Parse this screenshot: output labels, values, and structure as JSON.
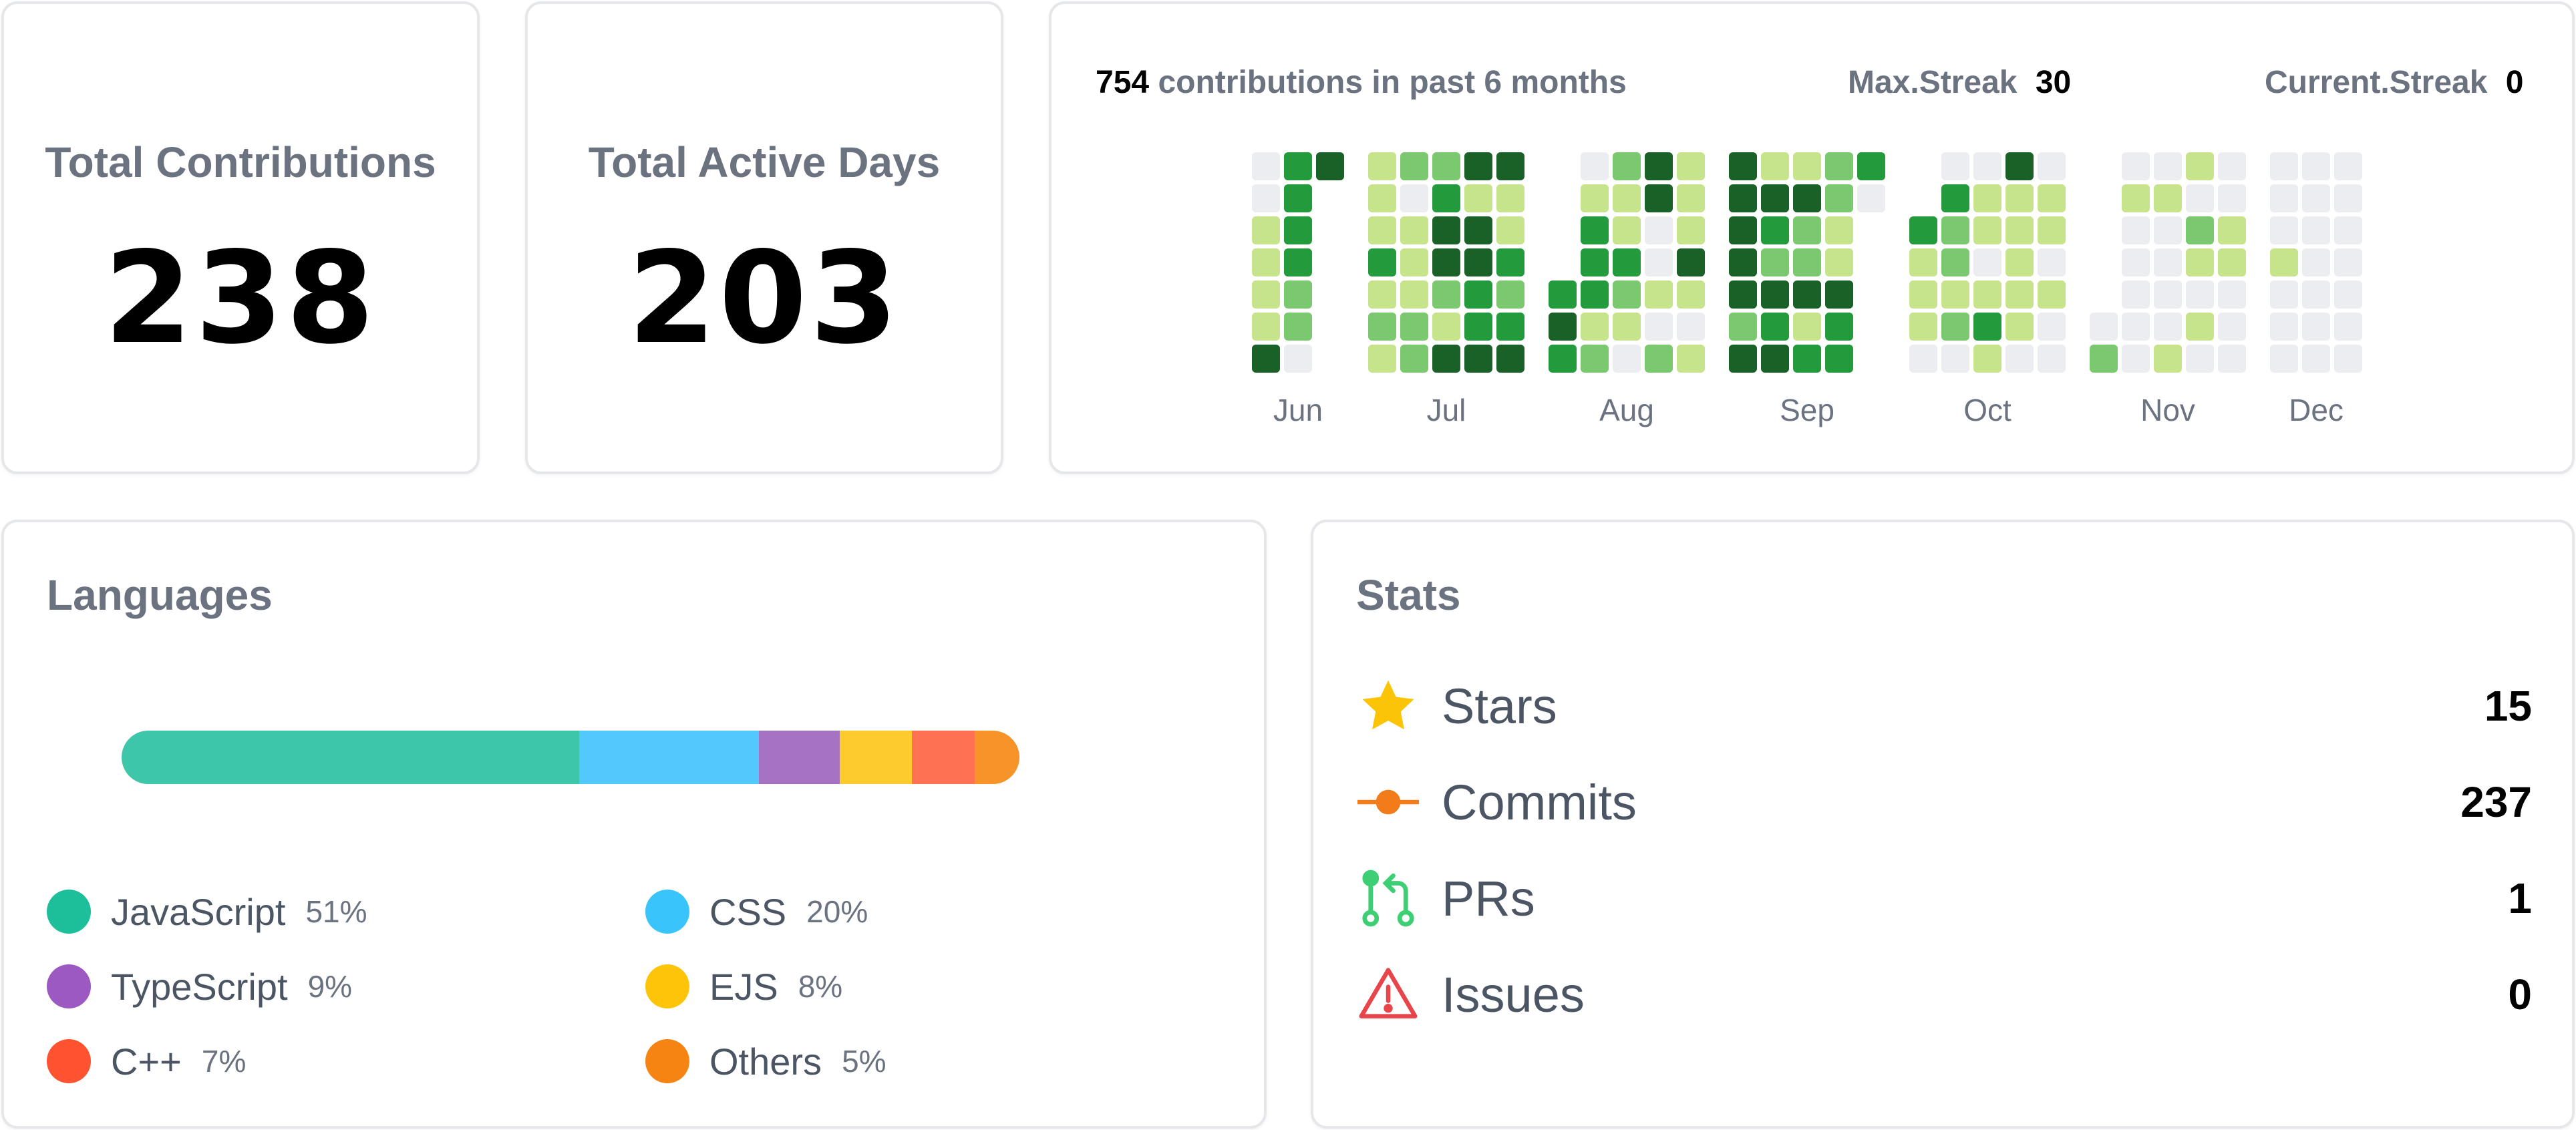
{
  "total_contributions": {
    "label": "Total Contributions",
    "value": "238"
  },
  "total_active_days": {
    "label": "Total Active Days",
    "value": "203"
  },
  "heatmap": {
    "contributions_count": "754",
    "contributions_text": "contributions in past 6 months",
    "max_streak_label": "Max.Streak",
    "max_streak_value": "30",
    "current_streak_label": "Current.Streak",
    "current_streak_value": "0",
    "colors": [
      "#ebedf0",
      "#c6e48b",
      "#7bc96f",
      "#239a3b",
      "#196127"
    ],
    "months": [
      {
        "label": "Jun",
        "weeks": [
          [
            0,
            0,
            1,
            1,
            1,
            1,
            4
          ],
          [
            3,
            3,
            3,
            3,
            2,
            2,
            0
          ],
          [
            4,
            -1,
            -1,
            -1,
            -1,
            -1,
            -1
          ]
        ]
      },
      {
        "label": "Jul",
        "weeks": [
          [
            1,
            1,
            1,
            3,
            1,
            2,
            1
          ],
          [
            2,
            0,
            1,
            1,
            1,
            2,
            2
          ],
          [
            2,
            3,
            4,
            4,
            2,
            1,
            4
          ],
          [
            4,
            1,
            4,
            4,
            3,
            3,
            4
          ],
          [
            4,
            1,
            1,
            3,
            2,
            3,
            4
          ]
        ]
      },
      {
        "label": "Aug",
        "weeks": [
          [
            -1,
            -1,
            -1,
            -1,
            3,
            4,
            3
          ],
          [
            0,
            1,
            3,
            3,
            3,
            1,
            2
          ],
          [
            2,
            1,
            1,
            3,
            2,
            1,
            0
          ],
          [
            4,
            4,
            0,
            0,
            1,
            0,
            2
          ],
          [
            1,
            1,
            1,
            4,
            1,
            0,
            1
          ]
        ]
      },
      {
        "label": "Sep",
        "weeks": [
          [
            4,
            4,
            4,
            4,
            4,
            2,
            4
          ],
          [
            1,
            4,
            3,
            2,
            4,
            3,
            4
          ],
          [
            1,
            4,
            2,
            2,
            4,
            1,
            3
          ],
          [
            2,
            2,
            1,
            1,
            4,
            3,
            3
          ],
          [
            3,
            0,
            -1,
            -1,
            -1,
            -1,
            -1
          ]
        ]
      },
      {
        "label": "Oct",
        "weeks": [
          [
            -1,
            -1,
            3,
            1,
            1,
            1,
            0
          ],
          [
            0,
            3,
            2,
            2,
            1,
            2,
            0
          ],
          [
            0,
            1,
            1,
            0,
            1,
            3,
            1
          ],
          [
            4,
            1,
            1,
            1,
            1,
            1,
            0
          ],
          [
            0,
            1,
            1,
            0,
            1,
            0,
            0
          ]
        ]
      },
      {
        "label": "Nov",
        "weeks": [
          [
            -1,
            -1,
            -1,
            -1,
            -1,
            0,
            2
          ],
          [
            0,
            1,
            0,
            0,
            0,
            0,
            0
          ],
          [
            0,
            1,
            0,
            0,
            0,
            0,
            1
          ],
          [
            1,
            0,
            2,
            1,
            0,
            1,
            0
          ],
          [
            0,
            0,
            1,
            1,
            0,
            0,
            0
          ]
        ]
      },
      {
        "label": "Dec",
        "weeks": [
          [
            0,
            0,
            0,
            1,
            0,
            0,
            0
          ],
          [
            0,
            0,
            0,
            0,
            0,
            0,
            0
          ],
          [
            0,
            0,
            0,
            0,
            0,
            0,
            0
          ]
        ]
      }
    ]
  },
  "languages": {
    "title": "Languages",
    "bar": [
      {
        "name": "JavaScript",
        "pct": 51,
        "color": "#3ec6aa"
      },
      {
        "name": "CSS",
        "pct": 20,
        "color": "#53c8fc"
      },
      {
        "name": "TypeScript",
        "pct": 9,
        "color": "#a673c3"
      },
      {
        "name": "EJS",
        "pct": 8,
        "color": "#fecb2e"
      },
      {
        "name": "C++",
        "pct": 7,
        "color": "#ff7153"
      },
      {
        "name": "Others",
        "pct": 5,
        "color": "#f6942a"
      }
    ],
    "legend": [
      {
        "name": "JavaScript",
        "pct": "51%",
        "color": "#1dbf9a"
      },
      {
        "name": "CSS",
        "pct": "20%",
        "color": "#39c4fb"
      },
      {
        "name": "TypeScript",
        "pct": "9%",
        "color": "#9c59c2"
      },
      {
        "name": "EJS",
        "pct": "8%",
        "color": "#fdc40a"
      },
      {
        "name": "C++",
        "pct": "7%",
        "color": "#ff5230"
      },
      {
        "name": "Others",
        "pct": "5%",
        "color": "#f58413"
      }
    ]
  },
  "stats": {
    "title": "Stats",
    "rows": [
      {
        "icon": "star-icon",
        "label": "Stars",
        "value": "15",
        "color": "#fbc406"
      },
      {
        "icon": "commit-icon",
        "label": "Commits",
        "value": "237",
        "color": "#f27c1a"
      },
      {
        "icon": "pull-request-icon",
        "label": "PRs",
        "value": "1",
        "color": "#3ecf74"
      },
      {
        "icon": "issue-icon",
        "label": "Issues",
        "value": "0",
        "color": "#e7454a"
      }
    ]
  }
}
